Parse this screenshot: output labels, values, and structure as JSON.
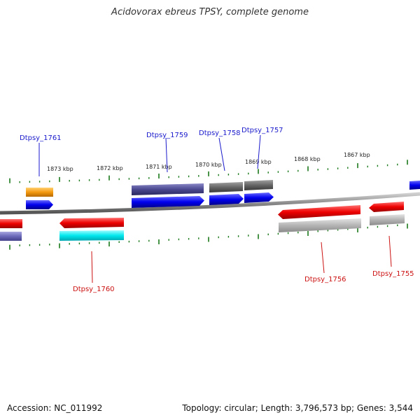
{
  "title": "Acidovorax ebreus TPSY, complete genome",
  "footer": {
    "accession": "Accession: NC_011992",
    "topology": "Topology: circular; Length: 3,796,573 bp; Genes: 3,544"
  },
  "scale_labels": [
    "1873 kbp",
    "1872 kbp",
    "1871 kbp",
    "1870 kbp",
    "1869 kbp",
    "1868 kbp",
    "1867 kbp"
  ],
  "gene_labels": {
    "forward": [
      "Dtpsy_1761",
      "Dtpsy_1759",
      "Dtpsy_1758",
      "Dtpsy_1757"
    ],
    "reverse": [
      "Dtpsy_1760",
      "Dtpsy_1756",
      "Dtpsy_1755"
    ]
  },
  "colors": {
    "forward_label": "#1a1acc",
    "reverse_label": "#cc1111",
    "cds_forward": "#0000ee",
    "cds_reverse": "#ee0000",
    "tick": "#1b7a1b",
    "backbone": "#888888"
  }
}
